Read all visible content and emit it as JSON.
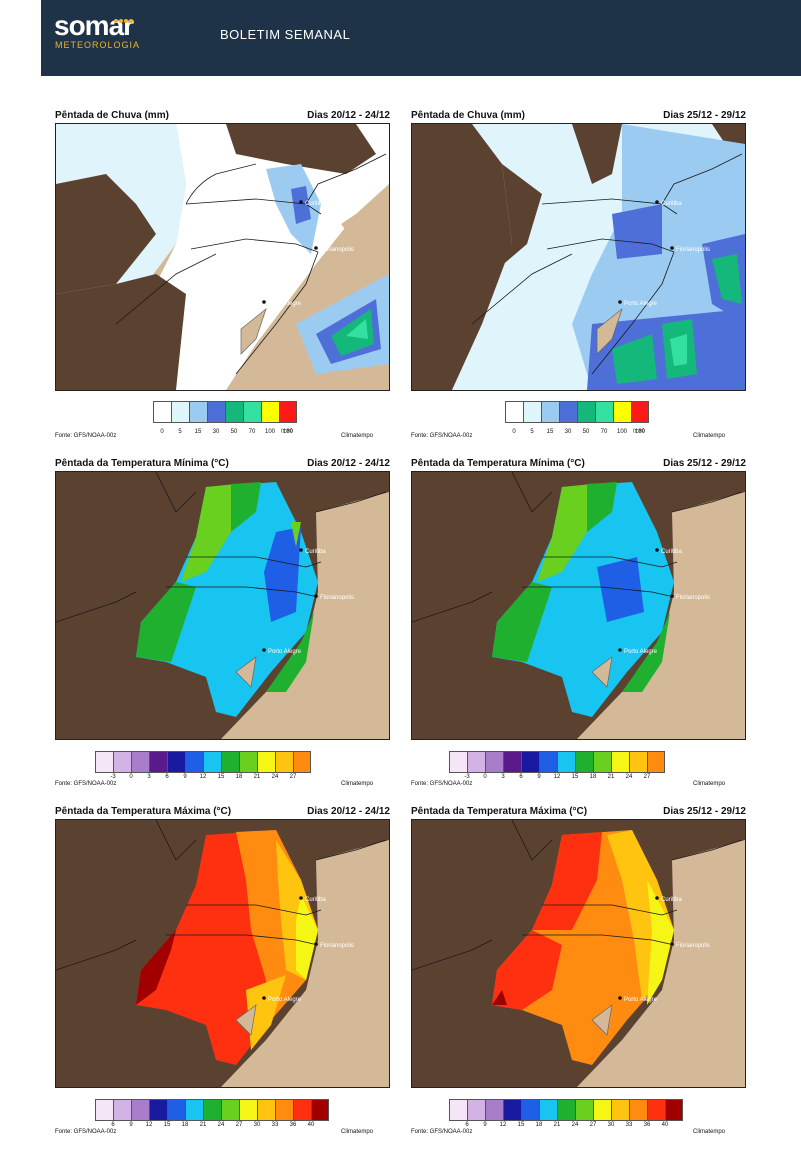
{
  "header": {
    "logo_text": "somar",
    "logo_sub": "METEOROLOGIA",
    "title": "BOLETIM SEMANAL"
  },
  "common": {
    "source": "Fonte: GFS/NOAA-00z",
    "credit": "Climatempo",
    "rain_unit": "(mm)",
    "cities": [
      "Curitiba",
      "Florianopolis",
      "Porto Alegre"
    ]
  },
  "rows": [
    {
      "title": "Pêntada de Chuva (mm)",
      "dates": [
        "Dias 20/12 - 24/12",
        "Dias 25/12 - 29/12"
      ],
      "legend_colors": [
        "#ffffff",
        "#dff4fb",
        "#9ccbf2",
        "#4e6fd8",
        "#14b87a",
        "#33e0a0",
        "#ffff00",
        "#ff1a1a"
      ],
      "legend_ticks": [
        "0",
        "5",
        "15",
        "30",
        "50",
        "70",
        "100",
        "130"
      ]
    },
    {
      "title": "Pêntada da Temperatura Mínima (°C)",
      "dates": [
        "Dias 20/12 - 24/12",
        "Dias 25/12 - 29/12"
      ],
      "legend_colors": [
        "#f5e6f7",
        "#d3b3e6",
        "#a87ecb",
        "#5a1a8c",
        "#1a1aa0",
        "#1e5fe6",
        "#18c4f0",
        "#20b030",
        "#6ad020",
        "#f5f516",
        "#ffc40f",
        "#ff8c10"
      ],
      "legend_ticks": [
        "-3",
        "0",
        "3",
        "6",
        "9",
        "12",
        "15",
        "18",
        "21",
        "24",
        "27"
      ]
    },
    {
      "title": "Pêntada da Temperatura Máxima (°C)",
      "dates": [
        "Dias 20/12 - 24/12",
        "Dias 25/12 - 29/12"
      ],
      "legend_colors": [
        "#f5e6f7",
        "#d3b3e6",
        "#a87ecb",
        "#1a1aa0",
        "#1e5fe6",
        "#18c4f0",
        "#20b030",
        "#6ad020",
        "#f5f516",
        "#ffc40f",
        "#ff8c10",
        "#ff3010",
        "#a00000"
      ],
      "legend_ticks": [
        "6",
        "9",
        "12",
        "15",
        "18",
        "21",
        "24",
        "27",
        "30",
        "33",
        "36",
        "40"
      ]
    }
  ]
}
